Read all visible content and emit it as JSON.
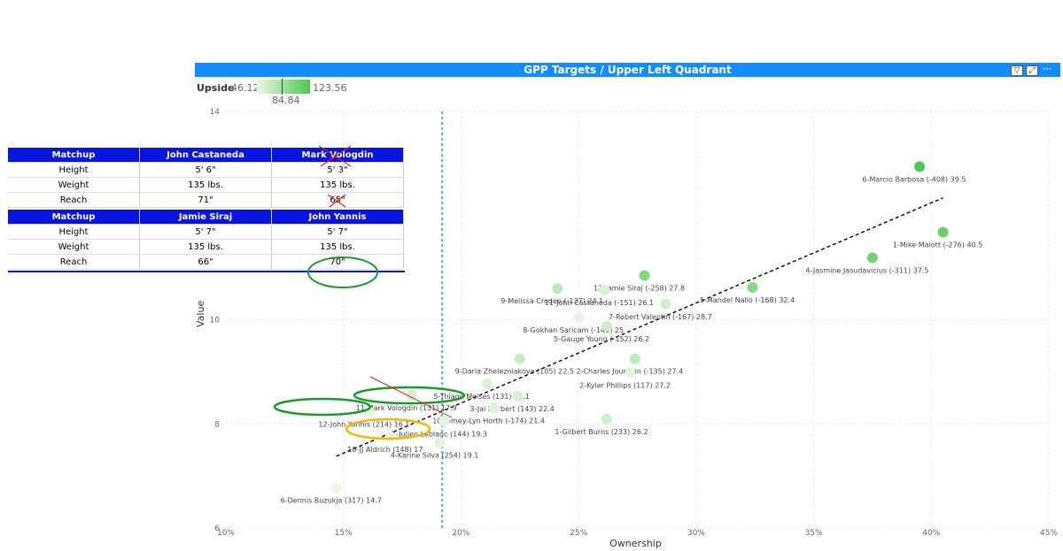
{
  "header": {
    "title": "GPP Targets / Upper Left Quadrant",
    "icons": [
      "filter-icon",
      "focus-mode-icon",
      "more-options-icon"
    ]
  },
  "legend": {
    "label": "Upside",
    "min": "46.12",
    "max": "123.56",
    "mid": "84.84",
    "color_low": "#eaf9e5",
    "color_high": "#4ec84e"
  },
  "chart_data": {
    "type": "scatter",
    "title": "GPP Targets / Upper Left Quadrant",
    "xlabel": "Ownership",
    "ylabel": "Value",
    "xlim": [
      0.1,
      0.45
    ],
    "ylim": [
      6,
      14
    ],
    "x_ticks": [
      "10%",
      "15%",
      "20%",
      "25%",
      "30%",
      "35%",
      "40%",
      "45%"
    ],
    "y_ticks": [
      "6",
      "8",
      "10",
      "14"
    ],
    "reference_line_x": 0.192,
    "trend_line": {
      "x": [
        0.147,
        0.405
      ],
      "y": [
        7.38,
        12.34
      ]
    },
    "points": [
      {
        "label": "6-Marcio Barbosa (-408) 39.5",
        "x": 0.395,
        "y": 12.94,
        "upside": 123.56
      },
      {
        "label": "1-Mike Malott (-276) 40.5",
        "x": 0.405,
        "y": 11.68,
        "upside": 110
      },
      {
        "label": "4-Jasmine Jasudavicius (-311) 37.5",
        "x": 0.375,
        "y": 11.19,
        "upside": 105
      },
      {
        "label": "5-Mandel Nallo (-168) 32.4",
        "x": 0.324,
        "y": 10.62,
        "upside": 95
      },
      {
        "label": "12-Jamie Siraj (-258) 27.8",
        "x": 0.278,
        "y": 10.85,
        "upside": 98
      },
      {
        "label": "9-Melissa Croden (-137) 24.1",
        "x": 0.241,
        "y": 10.6,
        "upside": 70
      },
      {
        "label": "11-John Castaneda (-151) 26.1",
        "x": 0.261,
        "y": 10.57,
        "upside": 55
      },
      {
        "label": "7-Robert Valentin (-167) 28.7",
        "x": 0.287,
        "y": 10.3,
        "upside": 60
      },
      {
        "label": "8-Gokhan Saricam (-148) 25",
        "x": 0.25,
        "y": 10.04,
        "upside": 50
      },
      {
        "label": "5-Gauge Young (-152) 26.2",
        "x": 0.262,
        "y": 9.87,
        "upside": 62
      },
      {
        "label": "9-Daria Zhelezniakova (105) 22.5",
        "x": 0.225,
        "y": 9.25,
        "upside": 65
      },
      {
        "label": "2-Charles Jourdain (-135) 27.4",
        "x": 0.274,
        "y": 9.25,
        "upside": 68
      },
      {
        "label": "2-Kyler Phillips (117) 27.2",
        "x": 0.272,
        "y": 8.98,
        "upside": 50
      },
      {
        "label": "5-Thiago Moises (131) 21.1",
        "x": 0.211,
        "y": 8.77,
        "upside": 55
      },
      {
        "label": "3-Jai Herbert (143) 22.4",
        "x": 0.224,
        "y": 8.53,
        "upside": 58
      },
      {
        "label": "11-Mark Vologdin (131) 17.9",
        "x": 0.179,
        "y": 8.55,
        "upside": 60
      },
      {
        "label": "10-Jamey-Lyn Horth (-174) 21.4",
        "x": 0.214,
        "y": 8.3,
        "upside": 52
      },
      {
        "label": "12-John Yannis (214) 16.1",
        "x": 0.161,
        "y": 8.23,
        "upside": 48
      },
      {
        "label": "7-Julien Leblanc (144) 19.3",
        "x": 0.193,
        "y": 8.05,
        "upside": 50
      },
      {
        "label": "1-Gilbert Burns (233) 26.2",
        "x": 0.262,
        "y": 8.09,
        "upside": 60
      },
      {
        "label": "10-JJ Aldrich (148) 17",
        "x": 0.17,
        "y": 7.75,
        "upside": 50
      },
      {
        "label": "4-Karine Silva (254) 19.1",
        "x": 0.191,
        "y": 7.64,
        "upside": 52
      },
      {
        "label": "6-Dennis Buzukja (317) 14.7",
        "x": 0.147,
        "y": 6.77,
        "upside": 46.12
      }
    ]
  },
  "matchup_tables": [
    {
      "columns": [
        "Matchup",
        "John Castaneda",
        "Mark Vologdin"
      ],
      "rows": [
        [
          "Height",
          "5' 6\"",
          "5' 3\""
        ],
        [
          "Weight",
          "135 lbs.",
          "135 lbs."
        ],
        [
          "Reach",
          "71\"",
          "65\""
        ]
      ]
    },
    {
      "columns": [
        "Matchup",
        "Jamie Siraj",
        "John Yannis"
      ],
      "rows": [
        [
          "Height",
          "5' 7\"",
          "5' 7\""
        ],
        [
          "Weight",
          "135 lbs.",
          "135 lbs."
        ],
        [
          "Reach",
          "66\"",
          "70\""
        ]
      ]
    }
  ],
  "annotation_colors": {
    "green": "#1a9a2a",
    "orange": "#f5b800",
    "red": "#e02020",
    "header_blue": "#0a14e0",
    "accent": "#118dff"
  }
}
